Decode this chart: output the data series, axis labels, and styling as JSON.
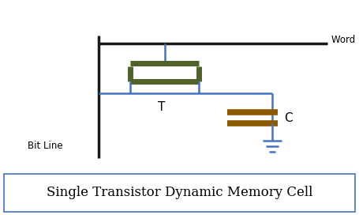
{
  "title": "Single Transistor Dynamic Memory Cell",
  "word_line_label": "Word Line",
  "bit_line_label": "Bit Line",
  "transistor_label": "T",
  "capacitor_label": "C",
  "wire_color": "#4472C4",
  "transistor_color": "#4F6228",
  "capacitor_color": "#8B5A00",
  "ground_color": "#4472C4",
  "text_color": "#000000",
  "line_color": "#1a1a1a",
  "bg_color": "#FFFFFF",
  "title_box_color": "#4472C4",
  "lw_wire": 1.8,
  "lw_transistor": 5.0,
  "lw_cap": 5.5,
  "lw_main": 2.5
}
